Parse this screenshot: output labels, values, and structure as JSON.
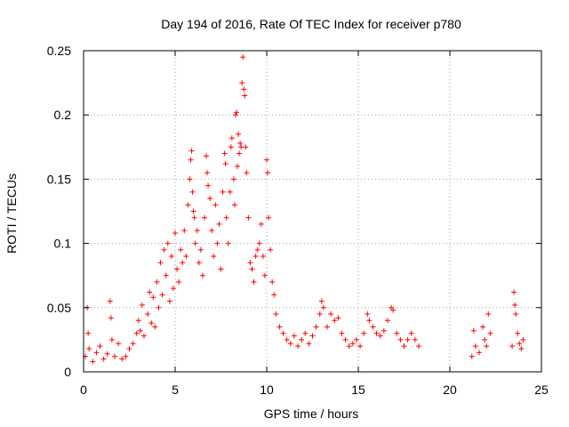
{
  "chart_data": {
    "type": "scatter",
    "title": "Day 194 of 2016, Rate Of TEC Index for receiver p780",
    "xlabel": "GPS time / hours",
    "ylabel": "ROTI / TECUs",
    "xlim": [
      0,
      25
    ],
    "ylim": [
      0,
      0.25
    ],
    "xticks": [
      0,
      5,
      10,
      15,
      20,
      25
    ],
    "yticks": [
      0,
      0.05,
      0.1,
      0.15,
      0.2,
      0.25
    ],
    "xtick_labels": [
      "0",
      "5",
      "10",
      "15",
      "20",
      "25"
    ],
    "ytick_labels": [
      "0",
      "0.05",
      "0.1",
      "0.15",
      "0.2",
      "0.25"
    ],
    "grid": true,
    "marker": "+",
    "color": "#ff0000",
    "series": [
      {
        "name": "ROTI",
        "points": [
          [
            0.1,
            0.012
          ],
          [
            0.2,
            0.05
          ],
          [
            0.25,
            0.03
          ],
          [
            0.3,
            0.018
          ],
          [
            0.5,
            0.008
          ],
          [
            0.7,
            0.015
          ],
          [
            0.9,
            0.02
          ],
          [
            1.1,
            0.01
          ],
          [
            1.3,
            0.014
          ],
          [
            1.45,
            0.055
          ],
          [
            1.5,
            0.042
          ],
          [
            1.55,
            0.025
          ],
          [
            1.7,
            0.012
          ],
          [
            1.9,
            0.022
          ],
          [
            2.1,
            0.01
          ],
          [
            2.3,
            0.012
          ],
          [
            2.5,
            0.018
          ],
          [
            2.7,
            0.022
          ],
          [
            2.9,
            0.03
          ],
          [
            3.0,
            0.04
          ],
          [
            3.1,
            0.032
          ],
          [
            3.2,
            0.052
          ],
          [
            3.3,
            0.028
          ],
          [
            3.5,
            0.045
          ],
          [
            3.6,
            0.062
          ],
          [
            3.7,
            0.038
          ],
          [
            3.8,
            0.058
          ],
          [
            3.9,
            0.035
          ],
          [
            4.0,
            0.07
          ],
          [
            4.1,
            0.05
          ],
          [
            4.2,
            0.085
          ],
          [
            4.3,
            0.06
          ],
          [
            4.4,
            0.095
          ],
          [
            4.5,
            0.075
          ],
          [
            4.6,
            0.1
          ],
          [
            4.7,
            0.055
          ],
          [
            4.8,
            0.09
          ],
          [
            4.9,
            0.065
          ],
          [
            5.0,
            0.108
          ],
          [
            5.1,
            0.08
          ],
          [
            5.2,
            0.07
          ],
          [
            5.3,
            0.095
          ],
          [
            5.4,
            0.085
          ],
          [
            5.5,
            0.11
          ],
          [
            5.6,
            0.09
          ],
          [
            5.7,
            0.13
          ],
          [
            5.8,
            0.15
          ],
          [
            5.85,
            0.165
          ],
          [
            5.9,
            0.172
          ],
          [
            5.95,
            0.14
          ],
          [
            6.0,
            0.125
          ],
          [
            6.05,
            0.12
          ],
          [
            6.1,
            0.1
          ],
          [
            6.2,
            0.11
          ],
          [
            6.3,
            0.085
          ],
          [
            6.4,
            0.095
          ],
          [
            6.5,
            0.075
          ],
          [
            6.6,
            0.12
          ],
          [
            6.7,
            0.168
          ],
          [
            6.75,
            0.155
          ],
          [
            6.8,
            0.145
          ],
          [
            6.9,
            0.135
          ],
          [
            7.0,
            0.11
          ],
          [
            7.1,
            0.09
          ],
          [
            7.2,
            0.13
          ],
          [
            7.3,
            0.1
          ],
          [
            7.4,
            0.115
          ],
          [
            7.5,
            0.08
          ],
          [
            7.6,
            0.14
          ],
          [
            7.7,
            0.17
          ],
          [
            7.75,
            0.162
          ],
          [
            7.8,
            0.12
          ],
          [
            7.9,
            0.1
          ],
          [
            8.0,
            0.14
          ],
          [
            8.05,
            0.175
          ],
          [
            8.1,
            0.182
          ],
          [
            8.2,
            0.15
          ],
          [
            8.25,
            0.13
          ],
          [
            8.3,
            0.2
          ],
          [
            8.35,
            0.202
          ],
          [
            8.4,
            0.16
          ],
          [
            8.45,
            0.185
          ],
          [
            8.5,
            0.17
          ],
          [
            8.55,
            0.178
          ],
          [
            8.6,
            0.175
          ],
          [
            8.65,
            0.225
          ],
          [
            8.7,
            0.245
          ],
          [
            8.75,
            0.22
          ],
          [
            8.8,
            0.215
          ],
          [
            8.85,
            0.175
          ],
          [
            8.9,
            0.155
          ],
          [
            9.0,
            0.12
          ],
          [
            9.1,
            0.085
          ],
          [
            9.2,
            0.08
          ],
          [
            9.3,
            0.07
          ],
          [
            9.4,
            0.09
          ],
          [
            9.5,
            0.095
          ],
          [
            9.6,
            0.1
          ],
          [
            9.7,
            0.115
          ],
          [
            9.8,
            0.09
          ],
          [
            9.9,
            0.075
          ],
          [
            10.0,
            0.165
          ],
          [
            10.05,
            0.155
          ],
          [
            10.1,
            0.12
          ],
          [
            10.2,
            0.095
          ],
          [
            10.3,
            0.07
          ],
          [
            10.4,
            0.06
          ],
          [
            10.5,
            0.045
          ],
          [
            10.7,
            0.035
          ],
          [
            10.9,
            0.03
          ],
          [
            11.1,
            0.025
          ],
          [
            11.3,
            0.022
          ],
          [
            11.5,
            0.028
          ],
          [
            11.7,
            0.02
          ],
          [
            11.9,
            0.025
          ],
          [
            12.1,
            0.03
          ],
          [
            12.3,
            0.022
          ],
          [
            12.5,
            0.028
          ],
          [
            12.7,
            0.035
          ],
          [
            12.9,
            0.045
          ],
          [
            13.0,
            0.055
          ],
          [
            13.1,
            0.05
          ],
          [
            13.3,
            0.035
          ],
          [
            13.5,
            0.045
          ],
          [
            13.7,
            0.04
          ],
          [
            13.9,
            0.042
          ],
          [
            14.1,
            0.03
          ],
          [
            14.3,
            0.025
          ],
          [
            14.5,
            0.02
          ],
          [
            14.7,
            0.022
          ],
          [
            14.9,
            0.025
          ],
          [
            15.1,
            0.02
          ],
          [
            15.3,
            0.03
          ],
          [
            15.5,
            0.045
          ],
          [
            15.6,
            0.04
          ],
          [
            15.8,
            0.035
          ],
          [
            16.0,
            0.03
          ],
          [
            16.2,
            0.028
          ],
          [
            16.4,
            0.032
          ],
          [
            16.6,
            0.04
          ],
          [
            16.8,
            0.05
          ],
          [
            16.9,
            0.048
          ],
          [
            17.1,
            0.03
          ],
          [
            17.3,
            0.025
          ],
          [
            17.5,
            0.02
          ],
          [
            17.7,
            0.025
          ],
          [
            17.9,
            0.03
          ],
          [
            18.1,
            0.025
          ],
          [
            18.3,
            0.02
          ],
          [
            21.2,
            0.012
          ],
          [
            21.3,
            0.032
          ],
          [
            21.4,
            0.02
          ],
          [
            21.6,
            0.015
          ],
          [
            21.8,
            0.035
          ],
          [
            21.9,
            0.025
          ],
          [
            22.0,
            0.02
          ],
          [
            22.1,
            0.045
          ],
          [
            22.2,
            0.03
          ],
          [
            23.4,
            0.02
          ],
          [
            23.5,
            0.062
          ],
          [
            23.55,
            0.052
          ],
          [
            23.6,
            0.045
          ],
          [
            23.7,
            0.03
          ],
          [
            23.8,
            0.022
          ],
          [
            23.9,
            0.018
          ],
          [
            24.0,
            0.025
          ]
        ]
      }
    ]
  }
}
